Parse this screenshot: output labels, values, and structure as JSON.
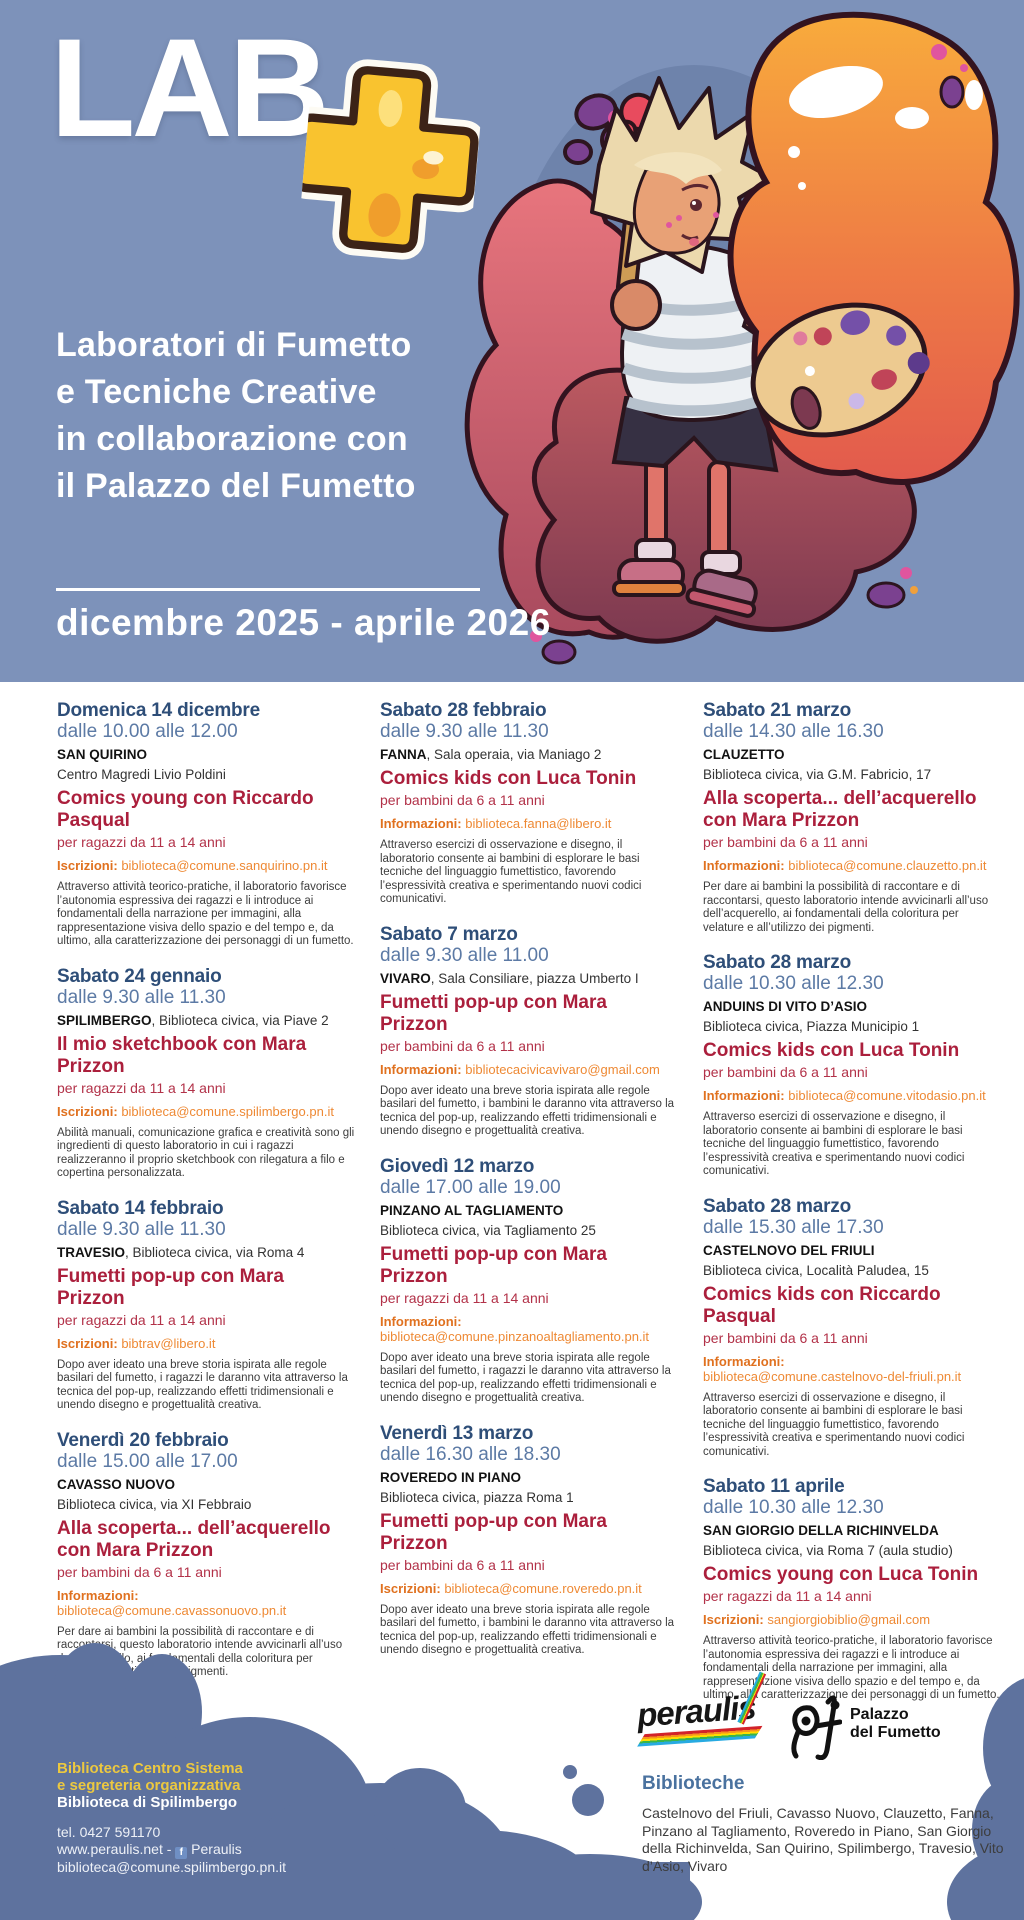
{
  "header": {
    "logo_text": "LAB",
    "logo_plus": "+",
    "title_lines": [
      "Laboratori di Fumetto",
      "e Tecniche Creative",
      "in collaborazione con",
      "il Palazzo del Fumetto"
    ],
    "date_range": "dicembre 2025 - aprile 2026",
    "illustration_alt": "bambino con pennello, tavolozza e schizzi di colore"
  },
  "columns": [
    [
      {
        "date": "Domenica 14 dicembre",
        "time": "dalle 10.00 alle 12.00",
        "venue_bold": "SAN QUIRINO",
        "venue_after": "",
        "venue_line2": "Centro Magredi Livio Poldini",
        "title_lines": [
          "Comics young con Riccardo Pasqual"
        ],
        "audience": "per ragazzi da 11 a 14 anni",
        "contact_label": "Iscrizioni:",
        "contact_value": "biblioteca@comune.sanquirino.pn.it",
        "contact_break": false,
        "description": "Attraverso attività teorico-pratiche, il laboratorio favorisce l’autonomia espressiva dei ragazzi e li introduce ai fondamentali della narrazione per immagini, alla rappresentazione visiva dello spazio e del tempo e, da ultimo, alla caratterizzazione dei personaggi di un fumetto."
      },
      {
        "date": "Sabato 24 gennaio",
        "time": "dalle 9.30 alle 11.30",
        "venue_bold": "SPILIMBERGO",
        "venue_after": ", Biblioteca civica, via Piave 2",
        "venue_line2": "",
        "title_lines": [
          "Il mio sketchbook con Mara Prizzon"
        ],
        "audience": "per ragazzi da 11 a 14 anni",
        "contact_label": "Iscrizioni:",
        "contact_value": "biblioteca@comune.spilimbergo.pn.it",
        "contact_break": false,
        "description": "Abilità manuali, comunicazione grafica e creatività sono gli ingredienti di questo laboratorio in cui i ragazzi realizzeranno il proprio sketchbook con rilegatura a filo e copertina personalizzata."
      },
      {
        "date": "Sabato 14 febbraio",
        "time": "dalle 9.30 alle 11.30",
        "venue_bold": "TRAVESIO",
        "venue_after": ", Biblioteca civica, via Roma 4",
        "venue_line2": "",
        "title_lines": [
          "Fumetti pop-up con Mara Prizzon"
        ],
        "audience": "per ragazzi da 11 a 14 anni",
        "contact_label": "Iscrizioni:",
        "contact_value": "bibtrav@libero.it",
        "contact_break": false,
        "description": "Dopo aver ideato una breve storia ispirata alle regole basilari del fumetto, i ragazzi le daranno vita attraverso la tecnica del pop-up, realizzando effetti tridimensionali e unendo disegno e progettualità creativa."
      },
      {
        "date": "Venerdì 20 febbraio",
        "time": "dalle 15.00 alle 17.00",
        "venue_bold": "CAVASSO NUOVO",
        "venue_after": "",
        "venue_line2": "Biblioteca civica, via XI Febbraio",
        "title_lines": [
          "Alla scoperta... dell’acquerello",
          "con Mara Prizzon"
        ],
        "audience": "per bambini da 6 a 11 anni",
        "contact_label": "Informazioni:",
        "contact_value": "biblioteca@comune.cavassonuovo.pn.it",
        "contact_break": true,
        "description": "Per dare ai bambini la possibilità di raccontare e di raccontarsi, questo laboratorio intende avvicinarli all’uso dell’acquerello, ai fondamentali della coloritura per velature e all’utilizzo dei pigmenti."
      }
    ],
    [
      {
        "date": "Sabato 28 febbraio",
        "time": "dalle 9.30 alle 11.30",
        "venue_bold": "FANNA",
        "venue_after": ", Sala operaia, via Maniago 2",
        "venue_line2": "",
        "title_lines": [
          "Comics kids con Luca Tonin"
        ],
        "audience": "per bambini da 6 a 11 anni",
        "contact_label": "Informazioni:",
        "contact_value": "biblioteca.fanna@libero.it",
        "contact_break": false,
        "description": "Attraverso esercizi di osservazione e disegno, il laboratorio consente ai bambini di esplorare le basi tecniche del linguaggio fumettistico, favorendo l’espressività creativa e sperimentando nuovi codici comunicativi."
      },
      {
        "date": "Sabato 7 marzo",
        "time": "dalle 9.30 alle 11.00",
        "venue_bold": "VIVARO",
        "venue_after": ", Sala Consiliare, piazza Umberto I",
        "venue_line2": "",
        "title_lines": [
          "Fumetti pop-up con Mara Prizzon"
        ],
        "audience": "per bambini da 6 a 11 anni",
        "contact_label": "Informazioni:",
        "contact_value": "bibliotecacivicavivaro@gmail.com",
        "contact_break": false,
        "description": "Dopo aver ideato una breve storia ispirata alle regole basilari del fumetto, i bambini le daranno vita attraverso la tecnica del pop-up, realizzando effetti tridimensionali e unendo disegno e progettualità creativa."
      },
      {
        "date": "Giovedì 12 marzo",
        "time": "dalle 17.00 alle 19.00",
        "venue_bold": "PINZANO AL TAGLIAMENTO",
        "venue_after": "",
        "venue_line2": "Biblioteca civica, via Tagliamento 25",
        "title_lines": [
          "Fumetti pop-up con Mara Prizzon"
        ],
        "audience": "per ragazzi da 11 a 14 anni",
        "contact_label": "Informazioni:",
        "contact_value": "biblioteca@comune.pinzanoaltagliamento.pn.it",
        "contact_break": true,
        "description": "Dopo aver ideato una breve storia ispirata alle regole basilari del fumetto, i ragazzi le daranno vita attraverso la tecnica del pop-up, realizzando effetti tridimensionali e unendo disegno e progettualità creativa."
      },
      {
        "date": "Venerdì 13 marzo",
        "time": "dalle 16.30 alle 18.30",
        "venue_bold": "ROVEREDO IN PIANO",
        "venue_after": "",
        "venue_line2": "Biblioteca civica, piazza Roma 1",
        "title_lines": [
          "Fumetti pop-up con Mara Prizzon"
        ],
        "audience": "per bambini da 6 a 11 anni",
        "contact_label": "Iscrizioni:",
        "contact_value": "biblioteca@comune.roveredo.pn.it",
        "contact_break": false,
        "description": "Dopo aver ideato una breve storia ispirata alle regole basilari del fumetto, i bambini le daranno vita attraverso la tecnica del pop-up, realizzando effetti tridimensionali e unendo disegno e progettualità creativa."
      }
    ],
    [
      {
        "date": "Sabato 21 marzo",
        "time": "dalle 14.30 alle 16.30",
        "venue_bold": "CLAUZETTO",
        "venue_after": "",
        "venue_line2": "Biblioteca civica, via G.M. Fabricio, 17",
        "title_lines": [
          "Alla scoperta... dell’acquerello",
          "con Mara Prizzon"
        ],
        "audience": "per bambini da 6 a 11 anni",
        "contact_label": "Informazioni:",
        "contact_value": "biblioteca@comune.clauzetto.pn.it",
        "contact_break": false,
        "description": "Per dare ai bambini la possibilità di raccontare e di raccontarsi, questo laboratorio intende avvicinarli all’uso dell’acquerello, ai fondamentali della coloritura per velature e all’utilizzo dei pigmenti."
      },
      {
        "date": "Sabato 28 marzo",
        "time": "dalle 10.30 alle 12.30",
        "venue_bold": "ANDUINS DI VITO D’ASIO",
        "venue_after": "",
        "venue_line2": "Biblioteca civica, Piazza Municipio 1",
        "title_lines": [
          "Comics kids con Luca Tonin"
        ],
        "audience": "per bambini da 6 a 11 anni",
        "contact_label": "Informazioni:",
        "contact_value": "biblioteca@comune.vitodasio.pn.it",
        "contact_break": false,
        "description": "Attraverso esercizi di osservazione e disegno, il laboratorio consente ai bambini di esplorare le basi tecniche del linguaggio fumettistico, favorendo l’espressività creativa e sperimentando nuovi codici comunicativi."
      },
      {
        "date": "Sabato 28 marzo",
        "time": "dalle 15.30 alle 17.30",
        "venue_bold": "CASTELNOVO DEL FRIULI",
        "venue_after": "",
        "venue_line2": "Biblioteca civica, Località Paludea, 15",
        "title_lines": [
          "Comics kids con Riccardo Pasqual"
        ],
        "audience": "per bambini da 6 a 11 anni",
        "contact_label": "Informazioni:",
        "contact_value": "biblioteca@comune.castelnovo-del-friuli.pn.it",
        "contact_break": true,
        "description": "Attraverso esercizi di osservazione e disegno, il laboratorio consente ai bambini di esplorare le basi tecniche del linguaggio fumettistico, favorendo l’espressività creativa e sperimentando nuovi codici comunicativi."
      },
      {
        "date": "Sabato 11 aprile",
        "time": "dalle 10.30 alle 12.30",
        "venue_bold": "SAN GIORGIO DELLA RICHINVELDA",
        "venue_after": "",
        "venue_line2": "Biblioteca civica, via Roma 7 (aula studio)",
        "title_lines": [
          "Comics young con Luca Tonin"
        ],
        "audience": "per ragazzi da 11 a 14 anni",
        "contact_label": "Iscrizioni:",
        "contact_value": "sangiorgiobiblio@gmail.com",
        "contact_break": false,
        "description": "Attraverso attività teorico-pratiche, il laboratorio favorisce l’autonomia espressiva dei ragazzi e li introduce ai fondamentali della narrazione per immagini, alla rappresentazione visiva dello spazio e del tempo e, da ultimo, alla caratterizzazione dei personaggi di un fumetto."
      }
    ]
  ],
  "footer": {
    "org_yellow": [
      "Biblioteca Centro Sistema",
      "e segreteria organizzativa"
    ],
    "org_white": "Biblioteca di Spilimbergo",
    "tel": "tel. 0427 591170",
    "web_prefix": "www.peraulis.net - ",
    "fb_icon": "f",
    "fb_label": "Peraulis",
    "email": "biblioteca@comune.spilimbergo.pn.it",
    "logos": {
      "peraulis": "peraulis",
      "pf_lines": [
        "Palazzo",
        "del Fumetto"
      ]
    },
    "libraries_heading": "Biblioteche",
    "libraries_list": "Castelnovo del Friuli, Cavasso Nuovo, Clauzetto, Fanna, Pinzano al Tagliamento, Roveredo in Piano, San Giorgio della Richinvelda, San Quirino, Spilimbergo, Travesio, Vito d’Asio, Vivaro"
  },
  "colors": {
    "header_bg": "#7d92ba",
    "footer_blob": "#5e729e",
    "date_blue": "#2e4e78",
    "time_blue": "#5c7aa5",
    "title_crimson": "#ab1f3c",
    "contact_orange": "#e0711f",
    "accent_yellow": "#ecc83f",
    "biblioteche_blue": "#4a729f"
  }
}
